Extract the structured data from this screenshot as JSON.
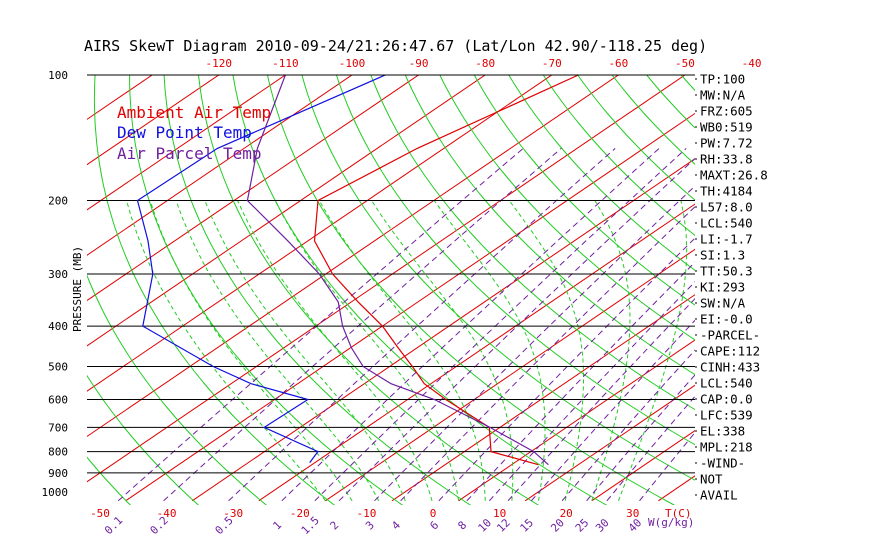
{
  "chart_data": {
    "type": "line",
    "title": "AIRS SkewT Diagram 2010-09-24/21:26:47.67 (Lat/Lon 42.90/-118.25 deg)",
    "ylabel": "PRESSURE (MB)",
    "xlabel": "T(C)",
    "mixing_ratio_label": "W(g/kg)",
    "y_scale": "log",
    "ylim": [
      1000,
      100
    ],
    "pressure_ticks": [
      100,
      200,
      300,
      400,
      500,
      600,
      700,
      800,
      900,
      1000
    ],
    "top_temp_ticks": [
      -120,
      -110,
      -100,
      -90,
      -80,
      -70,
      -60,
      -50,
      -40
    ],
    "bottom_temp_ticks": [
      -50,
      -40,
      -30,
      -20,
      -10,
      0,
      10,
      20,
      30
    ],
    "mixing_ratio_ticks": [
      "0.1",
      "0.2",
      "0.5",
      "1",
      "1.5",
      "2",
      "3",
      "4",
      "6",
      "8",
      "10",
      "12",
      "15",
      "20",
      "25",
      "30",
      "40"
    ],
    "grid": true,
    "legend_position": "top-left",
    "colors": {
      "ambient": "#e00000",
      "dewpoint": "#1010e0",
      "parcel": "#7020a0",
      "isotherm": "#e00000",
      "dry_adiabat": "#22cc22",
      "moist_adiabat": "#22cc22",
      "mixing_ratio": "#7020a0",
      "isobar": "#000000"
    },
    "series": [
      {
        "name": "Ambient Air Temp",
        "key": "ambient",
        "points": [
          [
            100,
            -66
          ],
          [
            150,
            -74
          ],
          [
            200,
            -77.4
          ],
          [
            250,
            -69
          ],
          [
            300,
            -59
          ],
          [
            350,
            -49
          ],
          [
            400,
            -40
          ],
          [
            450,
            -33
          ],
          [
            500,
            -26.6
          ],
          [
            550,
            -21
          ],
          [
            600,
            -14.3
          ],
          [
            700,
            -1.6
          ],
          [
            800,
            4
          ],
          [
            860,
            14
          ]
        ]
      },
      {
        "name": "Dew Point Temp",
        "key": "dewpoint",
        "points": [
          [
            100,
            -95
          ],
          [
            150,
            -104
          ],
          [
            200,
            -104.5
          ],
          [
            250,
            -94
          ],
          [
            300,
            -86
          ],
          [
            400,
            -76
          ],
          [
            500,
            -56.5
          ],
          [
            550,
            -47
          ],
          [
            600,
            -35
          ],
          [
            700,
            -35.4
          ],
          [
            800,
            -22
          ],
          [
            850,
            -20.8
          ]
        ]
      },
      {
        "name": "Air Parcel Temp",
        "key": "parcel",
        "points": [
          [
            100,
            -110
          ],
          [
            150,
            -98
          ],
          [
            200,
            -88
          ],
          [
            250,
            -73
          ],
          [
            300,
            -61
          ],
          [
            350,
            -52
          ],
          [
            400,
            -46
          ],
          [
            450,
            -40
          ],
          [
            500,
            -34
          ],
          [
            550,
            -26
          ],
          [
            600,
            -16
          ],
          [
            700,
            -1.5
          ],
          [
            800,
            10.4
          ],
          [
            860,
            15.5
          ]
        ]
      }
    ]
  },
  "stats": [
    "TP:100",
    "MW:N/A",
    "FRZ:605",
    "WB0:519",
    "PW:7.72",
    "RH:33.8",
    "MAXT:26.8",
    "TH:4184",
    "L57:8.0",
    "LCL:540",
    "LI:-1.7",
    "SI:1.3",
    "TT:50.3",
    "KI:293",
    "SW:N/A",
    "EI:-0.0",
    "-PARCEL-",
    "CAPE:112",
    "CINH:433",
    "LCL:540",
    "CAP:0.0",
    "LFC:539",
    "EL:338",
    "MPL:218",
    "-WIND-",
    "NOT",
    "AVAIL"
  ]
}
